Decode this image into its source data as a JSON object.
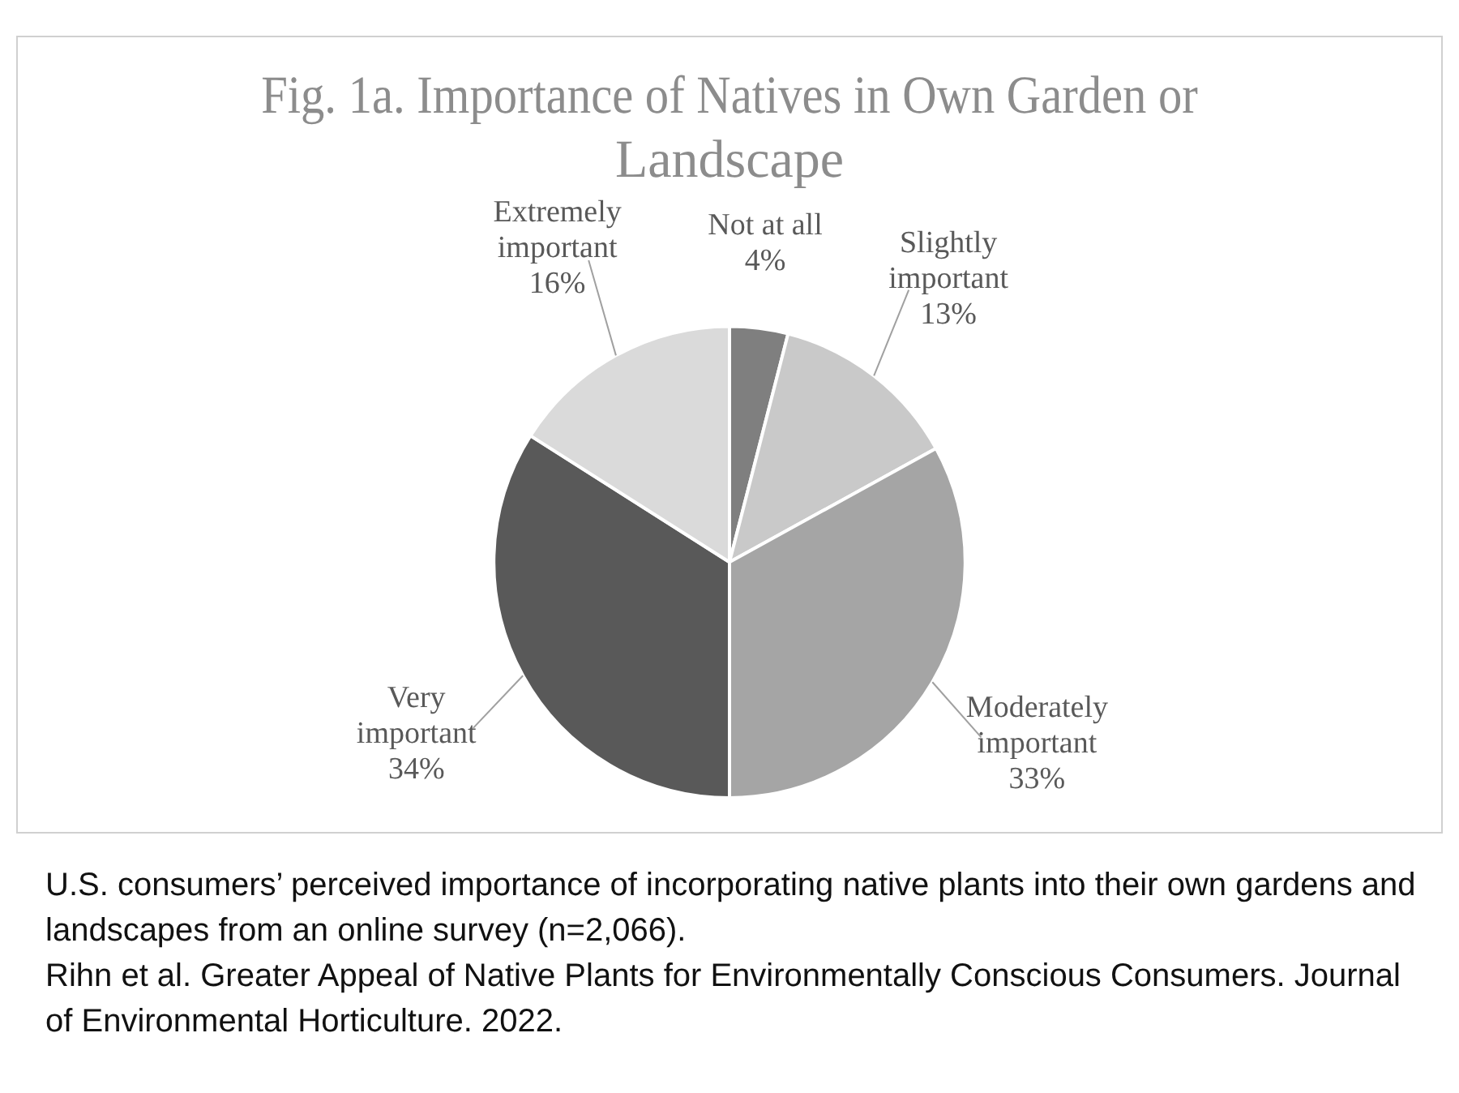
{
  "chart_data": {
    "type": "pie",
    "title": "Fig. 1a. Importance of Natives in Own Garden or Landscape",
    "categories": [
      "Not at all",
      "Slightly important",
      "Moderately important",
      "Very important",
      "Extremely important"
    ],
    "values": [
      4,
      13,
      33,
      34,
      16
    ],
    "value_labels": [
      "4%",
      "13%",
      "33%",
      "34%",
      "16%"
    ],
    "colors": [
      "#7f7f7f",
      "#c9c9c9",
      "#a5a5a5",
      "#595959",
      "#dadada"
    ],
    "legend": false,
    "annotations": [
      "U.S. consumers’ perceived importance of incorporating native plants into their own gardens and landscapes from an online survey  (n=2,066).",
      "Rihn et al. Greater Appeal of Native Plants for Environmentally Conscious Consumers. Journal of Environmental Horticulture. 2022."
    ]
  }
}
